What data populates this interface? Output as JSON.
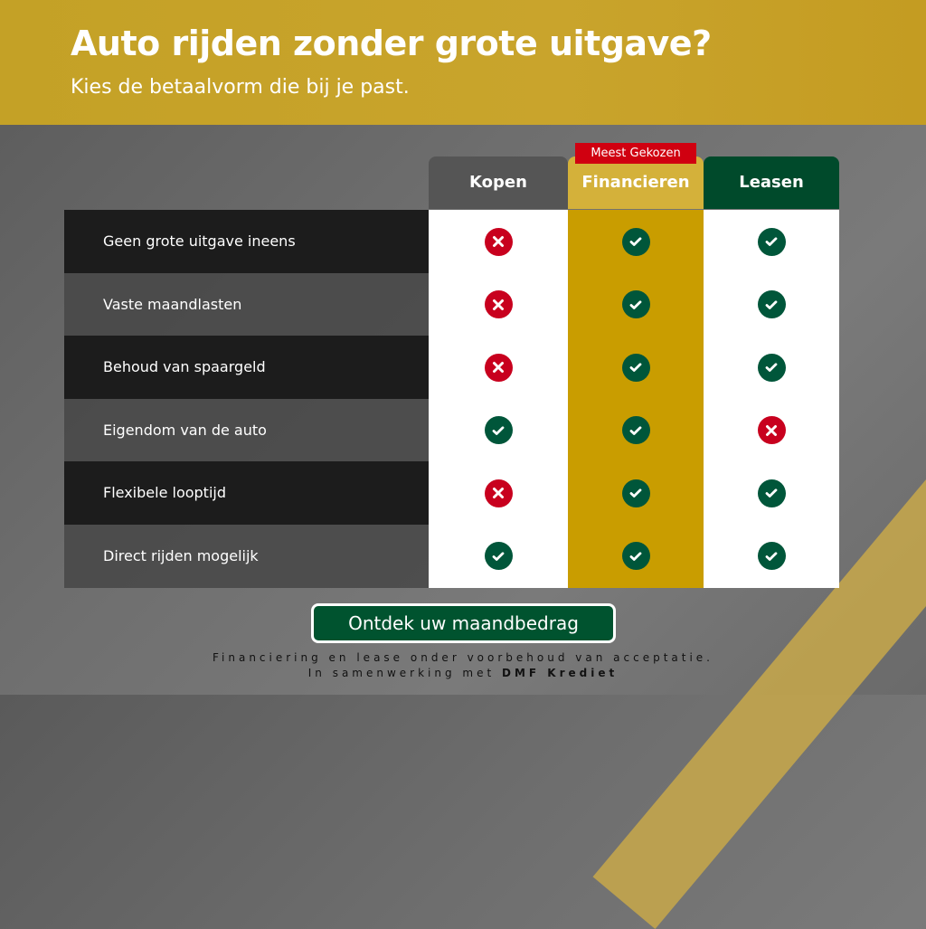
{
  "header": {
    "title": "Auto rijden zonder grote uitgave?",
    "subtitle": "Kies de betaalvorm die bij je past."
  },
  "badge": "Meest Gekozen",
  "columns": [
    "Kopen",
    "Financieren",
    "Leasen"
  ],
  "rows": [
    {
      "label": "Geen grote uitgave ineens",
      "values": [
        "cross",
        "check",
        "check"
      ]
    },
    {
      "label": "Vaste maandlasten",
      "values": [
        "cross",
        "check",
        "check"
      ]
    },
    {
      "label": "Behoud van spaargeld",
      "values": [
        "cross",
        "check",
        "check"
      ]
    },
    {
      "label": "Eigendom van de auto",
      "values": [
        "check",
        "check",
        "cross"
      ]
    },
    {
      "label": "Flexibele looptijd",
      "values": [
        "cross",
        "check",
        "check"
      ]
    },
    {
      "label": "Direct rijden mogelijk",
      "values": [
        "check",
        "check",
        "check"
      ]
    }
  ],
  "cta": "Ontdek uw maandbedrag",
  "footer": {
    "line1": "Financiering en lease onder voorbehoud van acceptatie.",
    "line2_prefix": "In samenwerking met ",
    "line2_brand": "DMF Krediet"
  },
  "colors": {
    "gold": "#c99d00",
    "green": "#00563a",
    "red": "#c8001e"
  }
}
